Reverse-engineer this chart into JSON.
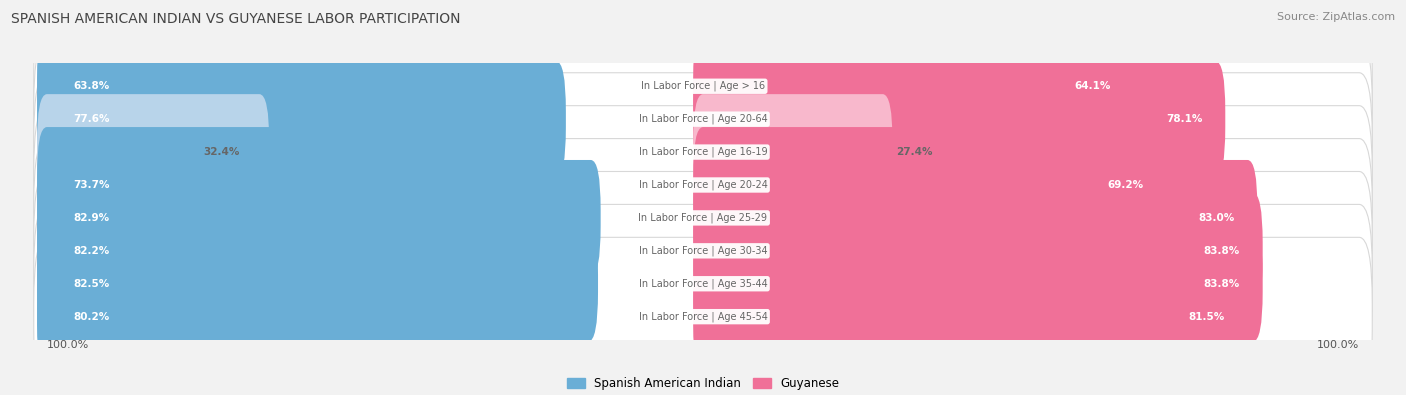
{
  "title": "SPANISH AMERICAN INDIAN VS GUYANESE LABOR PARTICIPATION",
  "source": "Source: ZipAtlas.com",
  "categories": [
    "In Labor Force | Age > 16",
    "In Labor Force | Age 20-64",
    "In Labor Force | Age 16-19",
    "In Labor Force | Age 20-24",
    "In Labor Force | Age 25-29",
    "In Labor Force | Age 30-34",
    "In Labor Force | Age 35-44",
    "In Labor Force | Age 45-54"
  ],
  "spanish_values": [
    63.8,
    77.6,
    32.4,
    73.7,
    82.9,
    82.2,
    82.5,
    80.2
  ],
  "guyanese_values": [
    64.1,
    78.1,
    27.4,
    69.2,
    83.0,
    83.8,
    83.8,
    81.5
  ],
  "spanish_color": "#6aaed6",
  "guyanese_color": "#f07098",
  "spanish_color_light": "#b8d4ea",
  "guyanese_color_light": "#f8b8cc",
  "max_value": 100.0,
  "background_color": "#f2f2f2",
  "row_bg_color": "#ffffff",
  "row_border_color": "#d8d8d8",
  "label_white": "#ffffff",
  "label_dark": "#666666",
  "center_label_color": "#666666",
  "title_color": "#444444",
  "source_color": "#888888",
  "legend_label_spanish": "Spanish American Indian",
  "legend_label_guyanese": "Guyanese",
  "bottom_label": "100.0%"
}
